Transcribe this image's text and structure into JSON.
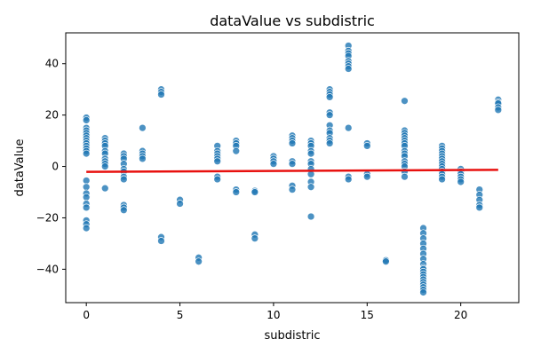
{
  "chart_data": {
    "type": "scatter",
    "title": "dataValue vs subdistric",
    "xlabel": "subdistric",
    "ylabel": "dataValue",
    "xlim": [
      -1.1,
      23.1
    ],
    "ylim": [
      -53,
      52
    ],
    "xticks": [
      0,
      5,
      10,
      15,
      20
    ],
    "yticks": [
      -40,
      -20,
      0,
      20,
      40
    ],
    "grid": false,
    "legend": false,
    "series": [
      {
        "kind": "points",
        "color": "#1f77b4",
        "points": [
          [
            0,
            19
          ],
          [
            0,
            18
          ],
          [
            0,
            15
          ],
          [
            0,
            14
          ],
          [
            0,
            13
          ],
          [
            0,
            12
          ],
          [
            0,
            11
          ],
          [
            0,
            10
          ],
          [
            0,
            9
          ],
          [
            0,
            8
          ],
          [
            0,
            7
          ],
          [
            0,
            6
          ],
          [
            0,
            5
          ],
          [
            0,
            -5.5
          ],
          [
            0,
            -8
          ],
          [
            0,
            -10.5
          ],
          [
            0,
            -12
          ],
          [
            0,
            -14.5
          ],
          [
            0,
            -16
          ],
          [
            0,
            -21
          ],
          [
            0,
            -22.5
          ],
          [
            0,
            -24
          ],
          [
            1,
            11
          ],
          [
            1,
            10
          ],
          [
            1,
            9
          ],
          [
            1,
            8
          ],
          [
            1,
            6
          ],
          [
            1,
            5
          ],
          [
            1,
            3
          ],
          [
            1,
            2
          ],
          [
            1,
            1
          ],
          [
            1,
            0
          ],
          [
            1,
            -8.5
          ],
          [
            2,
            5
          ],
          [
            2,
            4
          ],
          [
            2,
            3
          ],
          [
            2,
            1
          ],
          [
            2,
            -1
          ],
          [
            2,
            -2
          ],
          [
            2,
            -4
          ],
          [
            2,
            -5
          ],
          [
            2,
            -15
          ],
          [
            2,
            -16
          ],
          [
            2,
            -17
          ],
          [
            3,
            15
          ],
          [
            3,
            6
          ],
          [
            3,
            5
          ],
          [
            3,
            4
          ],
          [
            3,
            3
          ],
          [
            4,
            30
          ],
          [
            4,
            29
          ],
          [
            4,
            28
          ],
          [
            4,
            -27.5
          ],
          [
            4,
            -29
          ],
          [
            5,
            -13
          ],
          [
            5,
            -14.5
          ],
          [
            6,
            -35.5
          ],
          [
            6,
            -37
          ],
          [
            7,
            8
          ],
          [
            7,
            6
          ],
          [
            7,
            5
          ],
          [
            7,
            4
          ],
          [
            7,
            3
          ],
          [
            7,
            2
          ],
          [
            7,
            -4
          ],
          [
            7,
            -5
          ],
          [
            8,
            10
          ],
          [
            8,
            9
          ],
          [
            8,
            8
          ],
          [
            8,
            6
          ],
          [
            8,
            -9
          ],
          [
            8,
            -10
          ],
          [
            9,
            -9.5
          ],
          [
            9,
            -10
          ],
          [
            9,
            -26.5
          ],
          [
            9,
            -28
          ],
          [
            10,
            4
          ],
          [
            10,
            3
          ],
          [
            10,
            2
          ],
          [
            10,
            1
          ],
          [
            11,
            12
          ],
          [
            11,
            11
          ],
          [
            11,
            10
          ],
          [
            11,
            9
          ],
          [
            11,
            2
          ],
          [
            11,
            1
          ],
          [
            11,
            -7.5
          ],
          [
            11,
            -9
          ],
          [
            12,
            10
          ],
          [
            12,
            9
          ],
          [
            12,
            8
          ],
          [
            12,
            6
          ],
          [
            12,
            5
          ],
          [
            12,
            2
          ],
          [
            12,
            1
          ],
          [
            12,
            -1
          ],
          [
            12,
            -3
          ],
          [
            12,
            -6
          ],
          [
            12,
            -8
          ],
          [
            12,
            -19.5
          ],
          [
            13,
            30
          ],
          [
            13,
            29
          ],
          [
            13,
            28
          ],
          [
            13,
            27
          ],
          [
            13,
            21
          ],
          [
            13,
            20
          ],
          [
            13,
            16
          ],
          [
            13,
            14
          ],
          [
            13,
            13
          ],
          [
            13,
            11
          ],
          [
            13,
            10
          ],
          [
            13,
            9
          ],
          [
            14,
            47
          ],
          [
            14,
            45
          ],
          [
            14,
            44
          ],
          [
            14,
            43
          ],
          [
            14,
            41
          ],
          [
            14,
            40
          ],
          [
            14,
            39
          ],
          [
            14,
            38
          ],
          [
            14,
            15
          ],
          [
            14,
            -4
          ],
          [
            14,
            -5
          ],
          [
            15,
            9
          ],
          [
            15,
            8
          ],
          [
            15,
            -3
          ],
          [
            15,
            -4
          ],
          [
            16,
            -36.5
          ],
          [
            16,
            -37
          ],
          [
            17,
            25.5
          ],
          [
            17,
            14
          ],
          [
            17,
            13
          ],
          [
            17,
            12
          ],
          [
            17,
            11
          ],
          [
            17,
            10
          ],
          [
            17,
            9
          ],
          [
            17,
            8
          ],
          [
            17,
            6
          ],
          [
            17,
            5
          ],
          [
            17,
            4
          ],
          [
            17,
            2
          ],
          [
            17,
            1
          ],
          [
            17,
            0
          ],
          [
            17,
            -2
          ],
          [
            17,
            -4
          ],
          [
            18,
            -24
          ],
          [
            18,
            -26
          ],
          [
            18,
            -28
          ],
          [
            18,
            -30
          ],
          [
            18,
            -32
          ],
          [
            18,
            -34
          ],
          [
            18,
            -36
          ],
          [
            18,
            -38
          ],
          [
            18,
            -39.5
          ],
          [
            18,
            -40
          ],
          [
            18,
            -41
          ],
          [
            18,
            -42
          ],
          [
            18,
            -43
          ],
          [
            18,
            -44
          ],
          [
            18,
            -45
          ],
          [
            18,
            -46
          ],
          [
            18,
            -47
          ],
          [
            18,
            -48
          ],
          [
            18,
            -49
          ],
          [
            19,
            8
          ],
          [
            19,
            7
          ],
          [
            19,
            6
          ],
          [
            19,
            5
          ],
          [
            19,
            4
          ],
          [
            19,
            3
          ],
          [
            19,
            2
          ],
          [
            19,
            1
          ],
          [
            19,
            0
          ],
          [
            19,
            -1
          ],
          [
            19,
            -2
          ],
          [
            19,
            -3
          ],
          [
            19,
            -4
          ],
          [
            19,
            -5
          ],
          [
            20,
            -1
          ],
          [
            20,
            -2
          ],
          [
            20,
            -3
          ],
          [
            20,
            -4
          ],
          [
            20,
            -5
          ],
          [
            20,
            -6
          ],
          [
            21,
            -9
          ],
          [
            21,
            -11
          ],
          [
            21,
            -13
          ],
          [
            21,
            -15
          ],
          [
            21,
            -16
          ],
          [
            22,
            26
          ],
          [
            22,
            25
          ],
          [
            22,
            24.5
          ],
          [
            22,
            23
          ],
          [
            22,
            22
          ]
        ]
      },
      {
        "kind": "trend",
        "color": "#e8110f",
        "x": [
          0,
          22
        ],
        "y": [
          -2.1,
          -1.3
        ]
      }
    ]
  }
}
